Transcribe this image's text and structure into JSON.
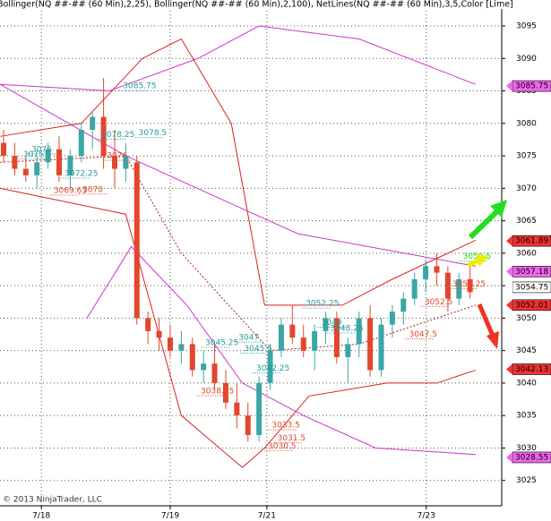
{
  "chart_data": {
    "type": "candlestick",
    "title": "Bollinger(NQ ##-## (60 Min),2,25), Bollinger(NQ ##-## (60 Min),2,100), NetLines(NQ ##-## (60 Min),3,5,Color [Lime],Color [DarkOrange],Color [Teal],Color",
    "footer": "© 2013 NinjaTrader, LLC",
    "up_color": "#3aa6a6",
    "down_color": "#e2462c",
    "grid": true,
    "xlim": [
      -0.65,
      89.7
    ],
    "ylim": [
      3021.1,
      3099
    ],
    "xticks": [
      {
        "value": 6.8,
        "label": "7/18"
      },
      {
        "value": 30,
        "label": "7/19"
      },
      {
        "value": 47.4,
        "label": "7/21"
      },
      {
        "value": 76.1,
        "label": "7/23"
      }
    ],
    "yticks": [
      3025,
      3030,
      3035,
      3040,
      3045,
      3050,
      3055,
      3060,
      3065,
      3070,
      3075,
      3080,
      3085,
      3090,
      3095
    ],
    "candles": {
      "x": [
        0,
        2,
        4,
        6,
        8,
        10,
        12,
        14,
        16,
        18,
        20,
        22,
        24,
        26,
        28,
        30,
        32,
        34,
        36,
        38,
        40,
        42,
        44,
        46,
        48,
        50,
        52,
        54,
        56,
        58,
        60,
        62,
        64,
        66,
        68,
        70,
        72,
        74,
        76,
        78,
        80,
        82,
        84
      ],
      "open": [
        3077,
        3075,
        3073,
        3072,
        3074,
        3076,
        3072,
        3075,
        3079,
        3081,
        3075,
        3073,
        3074,
        3050,
        3048,
        3047,
        3045,
        3046,
        3042,
        3043,
        3040,
        3037,
        3035,
        3032,
        3040,
        3045,
        3049,
        3047,
        3045,
        3048,
        3050,
        3044,
        3046,
        3050,
        3042,
        3049,
        3051,
        3053,
        3056,
        3058,
        3057,
        3053,
        3056
      ],
      "high": [
        3079,
        3077,
        3075,
        3075,
        3077,
        3078,
        3076,
        3080,
        3082,
        3087,
        3079,
        3077,
        3075,
        3051,
        3050,
        3049,
        3048,
        3047,
        3045,
        3046,
        3042,
        3040,
        3037,
        3041,
        3046,
        3050,
        3052,
        3049,
        3049,
        3051,
        3051,
        3047,
        3051,
        3052,
        3050,
        3052,
        3054,
        3057,
        3059,
        3060,
        3058,
        3057,
        3058
      ],
      "low": [
        3074,
        3072,
        3071,
        3070,
        3073,
        3071,
        3070,
        3074,
        3076,
        3073,
        3070,
        3071,
        3049,
        3046,
        3045,
        3044,
        3043,
        3041,
        3040,
        3039,
        3036,
        3033,
        3031,
        3031,
        3039,
        3044,
        3046,
        3044,
        3042,
        3046,
        3043,
        3040,
        3044,
        3041,
        3041,
        3047,
        3049,
        3052,
        3054,
        3055,
        3051,
        3052,
        3053
      ],
      "close": [
        3075,
        3073,
        3072,
        3074,
        3076,
        3072,
        3075,
        3079,
        3081,
        3075,
        3073,
        3075,
        3050,
        3048,
        3047,
        3045,
        3046,
        3042,
        3043,
        3040,
        3037,
        3035,
        3032,
        3040,
        3045,
        3049,
        3047,
        3045,
        3048,
        3050,
        3044,
        3046,
        3050,
        3042,
        3049,
        3051,
        3053,
        3056,
        3058,
        3057,
        3053,
        3056,
        3054
      ]
    },
    "series": [
      {
        "color": "#cc33cc",
        "x": [
          -0.6,
          22,
          40,
          53,
          85
        ],
        "values": [
          3086,
          3075,
          3068,
          3063,
          3058
        ]
      },
      {
        "color": "#cc33cc",
        "x": [
          -0.6,
          19,
          35,
          46,
          64,
          85
        ],
        "values": [
          3086,
          3085,
          3090,
          3095,
          3093,
          3086
        ]
      },
      {
        "color": "#cc33cc",
        "x": [
          15,
          23,
          33,
          43,
          54,
          67,
          85
        ],
        "values": [
          3050,
          3061,
          3052,
          3040,
          3035,
          3030,
          3029
        ]
      },
      {
        "color": "#e02020",
        "x": [
          -0.6,
          14,
          25,
          32,
          41,
          47,
          61,
          70,
          85
        ],
        "values": [
          3078,
          3080,
          3090,
          3093,
          3080,
          3052,
          3052,
          3056,
          3062
        ]
      },
      {
        "color": "#b02020",
        "dash": true,
        "x": [
          -0.6,
          22,
          32,
          48,
          64,
          85
        ],
        "values": [
          3074,
          3075,
          3060,
          3045,
          3046,
          3052
        ]
      },
      {
        "color": "#e02020",
        "x": [
          -0.6,
          22,
          32,
          43,
          47,
          55,
          69,
          78,
          85
        ],
        "values": [
          3070,
          3066,
          3035,
          3027,
          3030,
          3038,
          3040,
          3040,
          3042
        ]
      }
    ],
    "annotations": [
      {
        "text": "3085.75",
        "color": "#2a9a9a",
        "x": 21.5,
        "y": 3085.75
      },
      {
        "text": "3078.25",
        "color": "#2a9a9a",
        "x": 17.6,
        "y": 3078.25
      },
      {
        "text": "3078.5",
        "color": "#2a9a9a",
        "x": 24.3,
        "y": 3078.5
      },
      {
        "text": "3076",
        "color": "#2a9a9a",
        "x": 5,
        "y": 3076
      },
      {
        "text": "3075",
        "color": "#2a9a9a",
        "x": 3.5,
        "y": 3075.2
      },
      {
        "text": "3076",
        "color": "#e2462c",
        "x": 18.6,
        "y": 3075
      },
      {
        "text": "3072.25",
        "color": "#2a9a9a",
        "x": 11,
        "y": 3072.25
      },
      {
        "text": "3069.63",
        "color": "#e2462c",
        "x": 9,
        "y": 3069.63
      },
      {
        "text": "3070",
        "color": "#e2462c",
        "x": 14.2,
        "y": 3069.8
      },
      {
        "text": "3047",
        "color": "#2a9a9a",
        "x": 42.3,
        "y": 3047
      },
      {
        "text": "3045.25",
        "color": "#2a9a9a",
        "x": 36.3,
        "y": 3046.2
      },
      {
        "text": "3045.5",
        "color": "#2a9a9a",
        "x": 43.3,
        "y": 3045.3
      },
      {
        "text": "3042.25",
        "color": "#2a9a9a",
        "x": 45.5,
        "y": 3042.25
      },
      {
        "text": "3038.75",
        "color": "#e2462c",
        "x": 35.5,
        "y": 3038.75
      },
      {
        "text": "3033.5",
        "color": "#e2462c",
        "x": 48.3,
        "y": 3033.5
      },
      {
        "text": "3031.5",
        "color": "#e2462c",
        "x": 49.3,
        "y": 3031.5
      },
      {
        "text": "3030.5",
        "color": "#e2462c",
        "x": 47.6,
        "y": 3030.3
      },
      {
        "text": "3052.25",
        "color": "#2a9a9a",
        "x": 54.4,
        "y": 3052.25
      },
      {
        "text": "3049",
        "color": "#2a9a9a",
        "x": 57.2,
        "y": 3049.3
      },
      {
        "text": "3048.25",
        "color": "#2a9a9a",
        "x": 58.8,
        "y": 3048.4
      },
      {
        "text": "3047.5",
        "color": "#e2462c",
        "x": 73,
        "y": 3047.5
      },
      {
        "text": "3059.5",
        "color": "#22cc22",
        "x": 82.7,
        "y": 3059.5
      },
      {
        "text": "3055.25",
        "color": "#e2462c",
        "x": 80.8,
        "y": 3055.25
      },
      {
        "text": "3052.5",
        "color": "#e2462c",
        "x": 75.8,
        "y": 3052.5
      }
    ],
    "price_flags": [
      {
        "value": 3085.75,
        "color": "#ee66ee"
      },
      {
        "value": 3061.89,
        "color": "#ee3333"
      },
      {
        "value": 3057.18,
        "color": "#ee66ee"
      },
      {
        "value": 3054.75,
        "color": "#ffffff"
      },
      {
        "value": 3052.01,
        "color": "#ee3333"
      },
      {
        "value": 3042.13,
        "color": "#ee3333"
      },
      {
        "value": 3028.55,
        "color": "#ee66ee"
      }
    ]
  }
}
